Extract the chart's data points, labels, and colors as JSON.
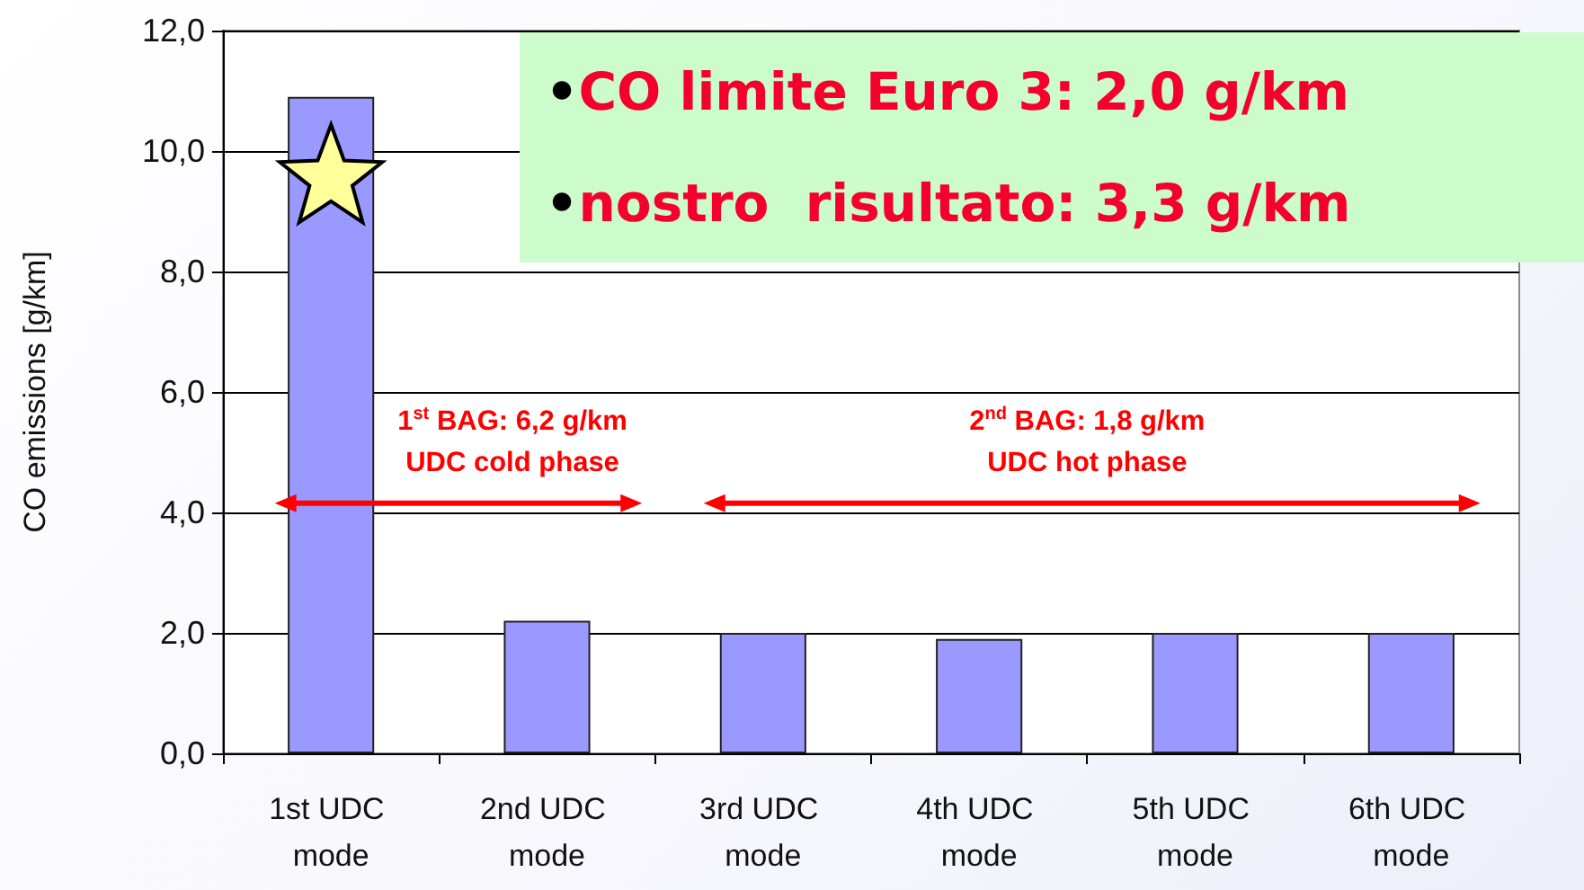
{
  "chart_data": {
    "type": "bar",
    "ylabel": "CO emissions [g/km]",
    "categories": [
      "1st UDC mode",
      "2nd UDC mode",
      "3rd UDC mode",
      "4th UDC mode",
      "5th UDC mode",
      "6th UDC mode"
    ],
    "values": [
      10.9,
      2.2,
      2.0,
      1.9,
      2.0,
      2.0
    ],
    "color": "#9999ff",
    "ylim": [
      0,
      12
    ],
    "yticks": [
      {
        "value": 0,
        "label": "0,0"
      },
      {
        "value": 2,
        "label": "2,0"
      },
      {
        "value": 4,
        "label": "4,0"
      },
      {
        "value": 6,
        "label": "6,0"
      },
      {
        "value": 8,
        "label": "8,0"
      },
      {
        "value": 10,
        "label": "10,0"
      },
      {
        "value": 12,
        "label": "12,0"
      }
    ],
    "grid": "y",
    "annotations": [
      "•CO limite Euro 3: 2,0 g/km",
      "•nostro  risultato: 3,3 g/km",
      "1$^{st}$ BAG: 6,2 g/km\nUDC cold phase",
      "2$^{nd}$ BAG: 1,8 g/km\nUDC hot phase"
    ]
  }
}
